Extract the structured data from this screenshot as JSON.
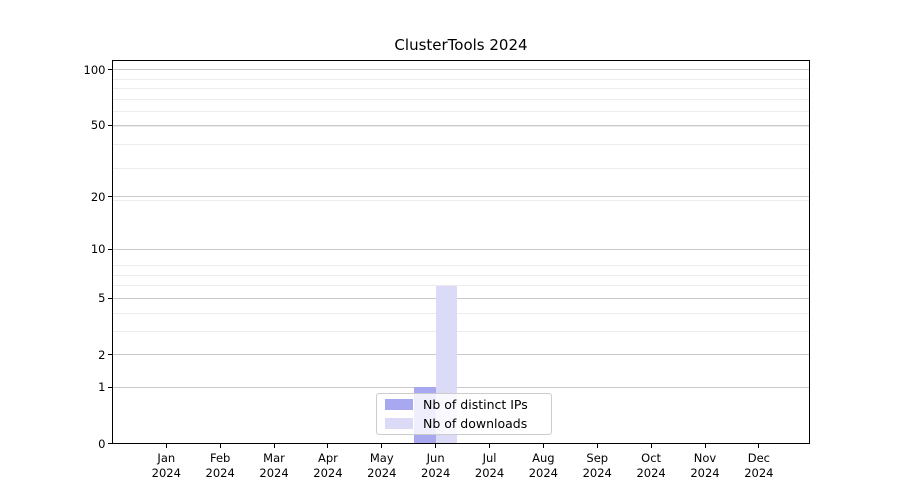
{
  "title": "ClusterTools 2024",
  "chart_data": {
    "type": "bar",
    "title": "ClusterTools 2024",
    "categories": [
      "Jan",
      "Feb",
      "Mar",
      "Apr",
      "May",
      "Jun",
      "Jul",
      "Aug",
      "Sep",
      "Oct",
      "Nov",
      "Dec"
    ],
    "category_year": "2024",
    "series": [
      {
        "name": "Nb of distinct IPs",
        "color": "#a8a8f0",
        "values": [
          0,
          0,
          0,
          0,
          0,
          1,
          0,
          0,
          0,
          0,
          0,
          0
        ]
      },
      {
        "name": "Nb of downloads",
        "color": "#dbdbf8",
        "values": [
          0,
          0,
          0,
          0,
          0,
          6,
          0,
          0,
          0,
          0,
          0,
          0
        ]
      }
    ],
    "yscale": "log10(1+y)",
    "ytick_values": [
      0,
      1,
      2,
      5,
      10,
      20,
      50,
      100
    ],
    "ytick_labels": [
      "0",
      "1",
      "2",
      "5",
      "10",
      "20",
      "50",
      "100"
    ],
    "minor_tick_values": [
      1,
      2,
      3,
      4,
      5,
      6,
      7,
      8,
      19,
      29,
      39,
      49,
      59,
      69,
      79,
      89
    ],
    "ylim": [
      0,
      113
    ],
    "grid": true,
    "legend_position": "lower center"
  }
}
